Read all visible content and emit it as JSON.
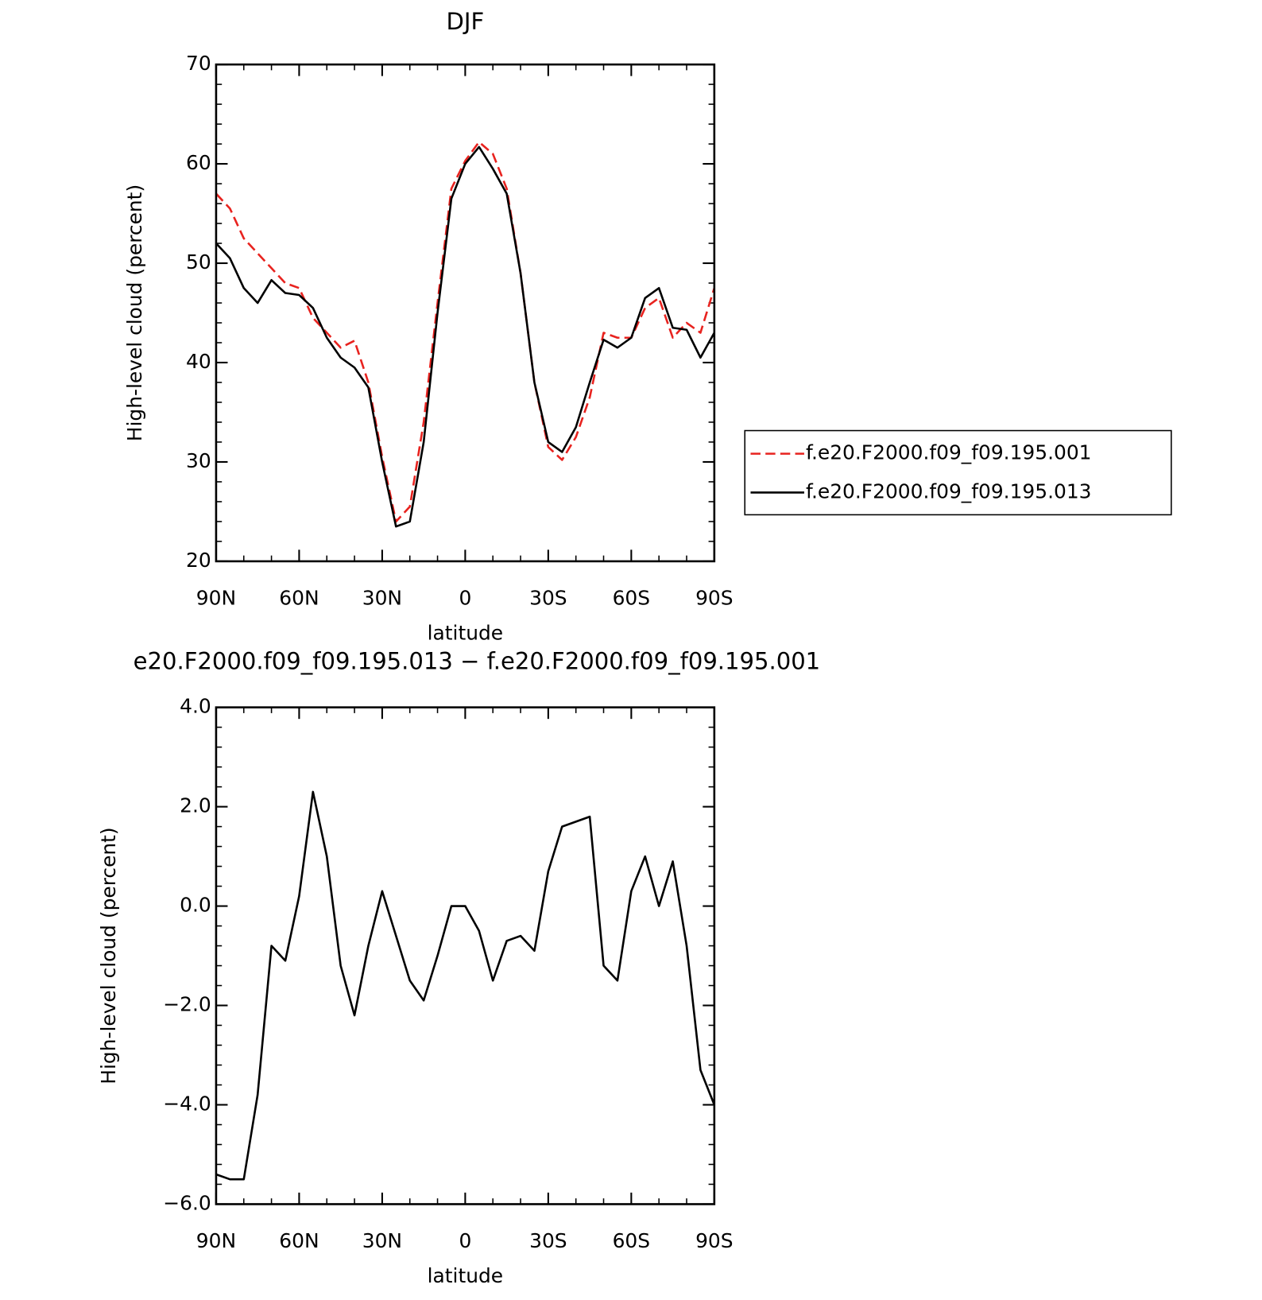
{
  "chart_data": [
    {
      "type": "line",
      "title": "DJF",
      "xlabel": "latitude",
      "ylabel": "High-level cloud (percent)",
      "x": [
        90,
        85,
        80,
        75,
        70,
        65,
        60,
        55,
        50,
        45,
        40,
        35,
        30,
        25,
        20,
        15,
        10,
        5,
        0,
        -5,
        -10,
        -15,
        -20,
        -25,
        -30,
        -35,
        -40,
        -45,
        -50,
        -55,
        -60,
        -65,
        -70,
        -75,
        -80,
        -85,
        -90
      ],
      "xlim": [
        90,
        -90
      ],
      "xticks": [
        {
          "value": 90,
          "label": "90N"
        },
        {
          "value": 60,
          "label": "60N"
        },
        {
          "value": 30,
          "label": "30N"
        },
        0,
        {
          "value": -30,
          "label": "30S"
        },
        {
          "value": -60,
          "label": "60S"
        },
        {
          "value": -90,
          "label": "90S"
        }
      ],
      "ylim": [
        20,
        70
      ],
      "yticks": [
        20,
        30,
        40,
        50,
        60,
        70
      ],
      "legend": "right",
      "series": [
        {
          "name": "f.e20.F2000.f09_f09.195.001",
          "color": "#e8231f",
          "line_style": "dashed",
          "values": [
            57,
            55.5,
            52.5,
            51,
            49.5,
            48,
            47.5,
            44.5,
            43,
            41.5,
            42.2,
            38,
            30.5,
            24,
            25.5,
            34,
            46,
            57.5,
            60.3,
            62.2,
            61,
            57.5,
            49,
            38,
            31.5,
            30.2,
            32.5,
            36.5,
            43,
            42.5,
            42.5,
            45.5,
            46.5,
            42.5,
            44,
            43,
            47.5
          ]
        },
        {
          "name": "f.e20.F2000.f09_f09.195.013",
          "color": "#000000",
          "line_style": "solid",
          "values": [
            52,
            50.5,
            47.5,
            46,
            48.3,
            47,
            46.8,
            45.5,
            42.5,
            40.5,
            39.5,
            37.5,
            30,
            23.5,
            24,
            32,
            45,
            56.5,
            60,
            61.7,
            59.5,
            57,
            49,
            38,
            32,
            31,
            33.5,
            38,
            42.3,
            41.5,
            42.5,
            46.5,
            47.5,
            43.5,
            43.3,
            40.5,
            43
          ]
        }
      ]
    },
    {
      "type": "line",
      "title": "e20.F2000.f09_f09.195.013 − f.e20.F2000.f09_f09.195.001",
      "xlabel": "latitude",
      "ylabel": "High-level cloud (percent)",
      "x": [
        90,
        85,
        80,
        75,
        70,
        65,
        60,
        55,
        50,
        45,
        40,
        35,
        30,
        25,
        20,
        15,
        10,
        5,
        0,
        -5,
        -10,
        -15,
        -20,
        -25,
        -30,
        -35,
        -40,
        -45,
        -50,
        -55,
        -60,
        -65,
        -70,
        -75,
        -80,
        -85,
        -90
      ],
      "xlim": [
        90,
        -90
      ],
      "xticks": [
        {
          "value": 90,
          "label": "90N"
        },
        {
          "value": 60,
          "label": "60N"
        },
        {
          "value": 30,
          "label": "30N"
        },
        0,
        {
          "value": -30,
          "label": "30S"
        },
        {
          "value": -60,
          "label": "60S"
        },
        {
          "value": -90,
          "label": "90S"
        }
      ],
      "ylim": [
        -6,
        4
      ],
      "yticks": [
        {
          "value": -6,
          "label": "−6.0"
        },
        {
          "value": -4,
          "label": "−4.0"
        },
        {
          "value": -2,
          "label": "−2.0"
        },
        {
          "value": 0,
          "label": "0.0"
        },
        {
          "value": 2,
          "label": "2.0"
        },
        {
          "value": 4,
          "label": "4.0"
        }
      ],
      "series": [
        {
          "color": "#000000",
          "line_style": "solid",
          "values": [
            -5.4,
            -5.5,
            -5.5,
            -3.8,
            -0.8,
            -1.1,
            0.2,
            2.3,
            1.0,
            -1.2,
            -2.2,
            -0.8,
            0.3,
            -0.6,
            -1.5,
            -1.9,
            -1.0,
            0,
            0,
            -0.5,
            -1.5,
            -0.7,
            -0.6,
            -0.9,
            0.7,
            1.6,
            1.7,
            1.8,
            -1.2,
            -1.5,
            0.3,
            1.0,
            0.0,
            0.9,
            -0.8,
            -3.3,
            -4.0
          ]
        }
      ]
    }
  ]
}
